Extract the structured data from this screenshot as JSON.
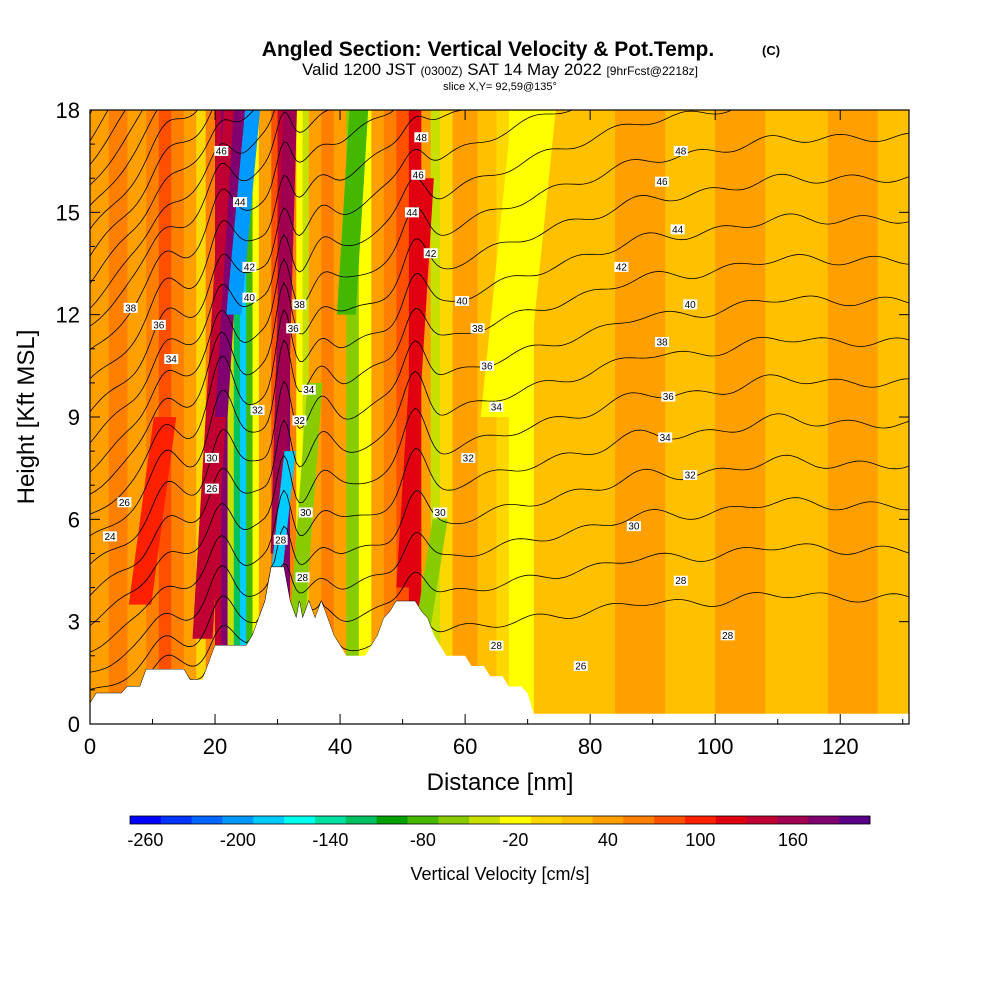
{
  "chart_data": {
    "type": "heatmap",
    "title": "Angled Section: Vertical Velocity & Pot.Temp.",
    "title_mark": "(C)",
    "subtitle_main": "Valid 1200 JST",
    "subtitle_zulu": "(0300Z)",
    "subtitle_date": "SAT 14 May 2022",
    "subtitle_fcst": "[9hrFcst@2218z]",
    "slice_label": "slice X,Y= 92,59@135°",
    "xlabel": "Distance [nm]",
    "ylabel": "Height [Kft MSL]",
    "xlim": [
      0,
      131
    ],
    "ylim": [
      0,
      18
    ],
    "xticks": [
      "0",
      "20",
      "40",
      "60",
      "80",
      "100",
      "120"
    ],
    "yticks": [
      "0",
      "3",
      "6",
      "9",
      "12",
      "15",
      "18"
    ],
    "colorbar": {
      "label": "Vertical Velocity [cm/s]",
      "ticks": [
        "-260",
        "-200",
        "-140",
        "-80",
        "-20",
        "40",
        "100",
        "160"
      ],
      "colors": [
        "#0000ff",
        "#0033ff",
        "#0066ff",
        "#0099ff",
        "#00ccff",
        "#00ffee",
        "#00e0a0",
        "#00c060",
        "#00a000",
        "#44b800",
        "#88cc00",
        "#c8e000",
        "#ffff00",
        "#ffd700",
        "#ffc000",
        "#ffa000",
        "#ff8000",
        "#ff5000",
        "#ff2000",
        "#e00010",
        "#c00030",
        "#a00050",
        "#800070",
        "#5a0088"
      ]
    },
    "columns": [
      {
        "x0": 0,
        "x1": 3,
        "w": 10
      },
      {
        "x0": 3,
        "x1": 6,
        "w": 30
      },
      {
        "x0": 6,
        "x1": 9,
        "w": 10
      },
      {
        "x0": 9,
        "x1": 11,
        "w": 40
      },
      {
        "x0": 11,
        "x1": 13,
        "w": 60
      },
      {
        "x0": 13,
        "x1": 15,
        "w": 40
      },
      {
        "x0": 15,
        "x1": 17,
        "w": 20
      },
      {
        "x0": 17,
        "x1": 18.5,
        "w": -20
      },
      {
        "x0": 18.5,
        "x1": 20,
        "w": 40
      },
      {
        "x0": 20,
        "x1": 21,
        "w": 120
      },
      {
        "x0": 21,
        "x1": 22,
        "w": 160
      },
      {
        "x0": 22,
        "x1": 23,
        "w": -60
      },
      {
        "x0": 23,
        "x1": 24,
        "w": -140
      },
      {
        "x0": 24,
        "x1": 25,
        "w": -200
      },
      {
        "x0": 25,
        "x1": 26,
        "w": -110
      },
      {
        "x0": 26,
        "x1": 27,
        "w": -40
      },
      {
        "x0": 27,
        "x1": 29,
        "w": 20
      },
      {
        "x0": 29,
        "x1": 30,
        "w": 60
      },
      {
        "x0": 30,
        "x1": 31,
        "w": 110
      },
      {
        "x0": 31,
        "x1": 32,
        "w": 150
      },
      {
        "x0": 32,
        "x1": 33,
        "w": 40
      },
      {
        "x0": 33,
        "x1": 34,
        "w": -40
      },
      {
        "x0": 34,
        "x1": 35,
        "w": -60
      },
      {
        "x0": 35,
        "x1": 37,
        "w": 10
      },
      {
        "x0": 37,
        "x1": 39,
        "w": 30
      },
      {
        "x0": 39,
        "x1": 41,
        "w": 10
      },
      {
        "x0": 41,
        "x1": 43,
        "w": -90
      },
      {
        "x0": 43,
        "x1": 45,
        "w": -40
      },
      {
        "x0": 45,
        "x1": 47,
        "w": 10
      },
      {
        "x0": 47,
        "x1": 49,
        "w": 30
      },
      {
        "x0": 49,
        "x1": 51,
        "w": 50
      },
      {
        "x0": 51,
        "x1": 53,
        "w": 90
      },
      {
        "x0": 53,
        "x1": 54.5,
        "w": 20
      },
      {
        "x0": 54.5,
        "x1": 56,
        "w": -70
      },
      {
        "x0": 56,
        "x1": 58,
        "w": -20
      },
      {
        "x0": 58,
        "x1": 62,
        "w": 15
      },
      {
        "x0": 62,
        "x1": 65,
        "w": 0
      },
      {
        "x0": 65,
        "x1": 67,
        "w": -15
      },
      {
        "x0": 67,
        "x1": 71,
        "w": -35
      },
      {
        "x0": 71,
        "x1": 74,
        "w": -10
      },
      {
        "x0": 74,
        "x1": 78,
        "w": 5
      },
      {
        "x0": 78,
        "x1": 84,
        "w": 0
      },
      {
        "x0": 84,
        "x1": 92,
        "w": 10
      },
      {
        "x0": 92,
        "x1": 100,
        "w": 0
      },
      {
        "x0": 100,
        "x1": 108,
        "w": 10
      },
      {
        "x0": 108,
        "x1": 118,
        "w": 0
      },
      {
        "x0": 118,
        "x1": 126,
        "w": 10
      },
      {
        "x0": 126,
        "x1": 131,
        "w": 0
      }
    ],
    "streaks": [
      {
        "x": [
          8,
          12
        ],
        "z": [
          3.5,
          9
        ],
        "w": 70,
        "width": 1.8
      },
      {
        "x": [
          18,
          23
        ],
        "z": [
          2.5,
          18
        ],
        "w": 120,
        "width": 1.6
      },
      {
        "x": [
          21,
          24
        ],
        "z": [
          9,
          18
        ],
        "w": 150,
        "width": 1.0
      },
      {
        "x": [
          23,
          26
        ],
        "z": [
          12,
          18
        ],
        "w": -220,
        "width": 1.2
      },
      {
        "x": [
          30,
          32
        ],
        "z": [
          5,
          18
        ],
        "w": 140,
        "width": 1.1
      },
      {
        "x": [
          29,
          32
        ],
        "z": [
          3,
          8
        ],
        "w": -200,
        "width": 0.9
      },
      {
        "x": [
          33,
          36
        ],
        "z": [
          2.5,
          10
        ],
        "w": -90,
        "width": 1.2
      },
      {
        "x": [
          50,
          54
        ],
        "z": [
          4,
          16
        ],
        "w": 100,
        "width": 1.0
      },
      {
        "x": [
          53,
          56
        ],
        "z": [
          2.5,
          6
        ],
        "w": -90,
        "width": 1.2
      },
      {
        "x": [
          41,
          43
        ],
        "z": [
          12,
          18
        ],
        "w": -100,
        "width": 1.5
      },
      {
        "x": [
          66,
          71
        ],
        "z": [
          9,
          18
        ],
        "w": -50,
        "width": 3.5
      }
    ],
    "terrain": [
      [
        0,
        0.6
      ],
      [
        1,
        0.9
      ],
      [
        5,
        0.9
      ],
      [
        6,
        1.1
      ],
      [
        8,
        1.1
      ],
      [
        9,
        1.6
      ],
      [
        15,
        1.6
      ],
      [
        16,
        1.3
      ],
      [
        18,
        1.3
      ],
      [
        19,
        1.8
      ],
      [
        20,
        2.3
      ],
      [
        25,
        2.3
      ],
      [
        26,
        2.6
      ],
      [
        27,
        3.1
      ],
      [
        28,
        3.6
      ],
      [
        29,
        4.6
      ],
      [
        31,
        4.6
      ],
      [
        31.5,
        4.1
      ],
      [
        32,
        3.6
      ],
      [
        33,
        3.1
      ],
      [
        33.5,
        3.6
      ],
      [
        34,
        3.1
      ],
      [
        35,
        3.6
      ],
      [
        36,
        3.1
      ],
      [
        37,
        3.6
      ],
      [
        38,
        3.1
      ],
      [
        39,
        2.6
      ],
      [
        40,
        2.3
      ],
      [
        41,
        2.0
      ],
      [
        44,
        2.0
      ],
      [
        45,
        2.3
      ],
      [
        46,
        2.6
      ],
      [
        47,
        3.1
      ],
      [
        48,
        3.3
      ],
      [
        49,
        3.6
      ],
      [
        52,
        3.6
      ],
      [
        53,
        3.3
      ],
      [
        54,
        3.1
      ],
      [
        55,
        2.6
      ],
      [
        56,
        2.3
      ],
      [
        57,
        2.0
      ],
      [
        60,
        2.0
      ],
      [
        61,
        1.7
      ],
      [
        63,
        1.7
      ],
      [
        64,
        1.4
      ],
      [
        66,
        1.4
      ],
      [
        67,
        1.1
      ],
      [
        69,
        1.1
      ],
      [
        70,
        0.9
      ],
      [
        71,
        0.3
      ],
      [
        131,
        0.3
      ]
    ],
    "theta_levels": [
      24,
      26,
      28,
      30,
      32,
      34,
      36,
      38,
      40,
      42,
      44,
      46,
      48
    ],
    "theta_left": [
      0.3,
      0.5,
      0.9,
      1.5,
      2.2,
      3.0,
      3.8,
      4.6,
      5.4,
      6.1,
      6.8,
      7.5,
      8.3,
      9.1,
      10.0,
      10.9,
      11.7,
      12.3,
      13.0,
      13.7,
      14.4,
      15.1,
      15.8,
      16.5,
      17.2,
      17.9
    ],
    "theta_right": [
      3.7,
      5.1,
      6.4,
      7.6,
      8.8,
      10.0,
      11.2,
      12.4,
      13.6,
      14.8,
      16.0,
      17.2
    ],
    "contour_labels": [
      {
        "text": "24",
        "x": 3.2,
        "z": 5.5
      },
      {
        "text": "26",
        "x": 5.5,
        "z": 6.5
      },
      {
        "text": "38",
        "x": 6.5,
        "z": 12.2
      },
      {
        "text": "36",
        "x": 11,
        "z": 11.7
      },
      {
        "text": "34",
        "x": 13,
        "z": 10.7
      },
      {
        "text": "30",
        "x": 19.5,
        "z": 7.8
      },
      {
        "text": "26",
        "x": 19.5,
        "z": 6.9
      },
      {
        "text": "46",
        "x": 21,
        "z": 16.8
      },
      {
        "text": "44",
        "x": 24,
        "z": 15.3
      },
      {
        "text": "42",
        "x": 25.5,
        "z": 13.4
      },
      {
        "text": "40",
        "x": 25.5,
        "z": 12.5
      },
      {
        "text": "38",
        "x": 33.5,
        "z": 12.3
      },
      {
        "text": "36",
        "x": 32.5,
        "z": 11.6
      },
      {
        "text": "32",
        "x": 26.8,
        "z": 9.2
      },
      {
        "text": "32",
        "x": 33.5,
        "z": 8.9
      },
      {
        "text": "34",
        "x": 35,
        "z": 9.8
      },
      {
        "text": "30",
        "x": 34.5,
        "z": 6.2
      },
      {
        "text": "28",
        "x": 30.5,
        "z": 5.4
      },
      {
        "text": "28",
        "x": 34,
        "z": 4.3
      },
      {
        "text": "48",
        "x": 53,
        "z": 17.2
      },
      {
        "text": "46",
        "x": 52.5,
        "z": 16.1
      },
      {
        "text": "44",
        "x": 51.5,
        "z": 15.0
      },
      {
        "text": "42",
        "x": 54.5,
        "z": 13.8
      },
      {
        "text": "40",
        "x": 59.5,
        "z": 12.4
      },
      {
        "text": "38",
        "x": 62,
        "z": 11.6
      },
      {
        "text": "36",
        "x": 63.5,
        "z": 10.5
      },
      {
        "text": "34",
        "x": 65,
        "z": 9.3
      },
      {
        "text": "32",
        "x": 60.5,
        "z": 7.8
      },
      {
        "text": "30",
        "x": 56,
        "z": 6.2
      },
      {
        "text": "48",
        "x": 94.5,
        "z": 16.8
      },
      {
        "text": "46",
        "x": 91.5,
        "z": 15.9
      },
      {
        "text": "44",
        "x": 94,
        "z": 14.5
      },
      {
        "text": "42",
        "x": 85,
        "z": 13.4
      },
      {
        "text": "40",
        "x": 96,
        "z": 12.3
      },
      {
        "text": "38",
        "x": 91.5,
        "z": 11.2
      },
      {
        "text": "36",
        "x": 92.5,
        "z": 9.6
      },
      {
        "text": "34",
        "x": 92,
        "z": 8.4
      },
      {
        "text": "32",
        "x": 96,
        "z": 7.3
      },
      {
        "text": "30",
        "x": 87,
        "z": 5.8
      },
      {
        "text": "28",
        "x": 94.5,
        "z": 4.2
      },
      {
        "text": "28",
        "x": 65,
        "z": 2.3
      },
      {
        "text": "26",
        "x": 78.5,
        "z": 1.7
      },
      {
        "text": "28",
        "x": 102,
        "z": 2.6
      }
    ]
  }
}
